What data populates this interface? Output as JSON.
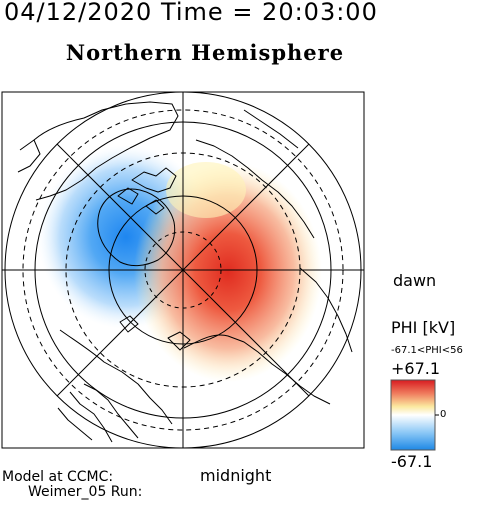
{
  "header": {
    "timestamp": "04/12/2020 Time = 20:03:00",
    "title": "Northern Hemisphere"
  },
  "map": {
    "projection": "polar-stereographic-north",
    "contour": "electric potential",
    "positive_cell": "dawn side, red",
    "negative_cell": "dusk side, blue",
    "labels": {
      "dawn": "dawn",
      "midnight": "midnight"
    }
  },
  "colorbar": {
    "title": "PHI [kV]",
    "range_text": "-67.1<PHI<56",
    "max_label": "+67.1",
    "zero_label": "0",
    "min_label": "-67.1",
    "colors": [
      "#1e88e5",
      "#ffffff",
      "#e53935"
    ]
  },
  "footer": {
    "line1": "Model at CCMC:",
    "line2": "Weimer_05 Run:"
  }
}
